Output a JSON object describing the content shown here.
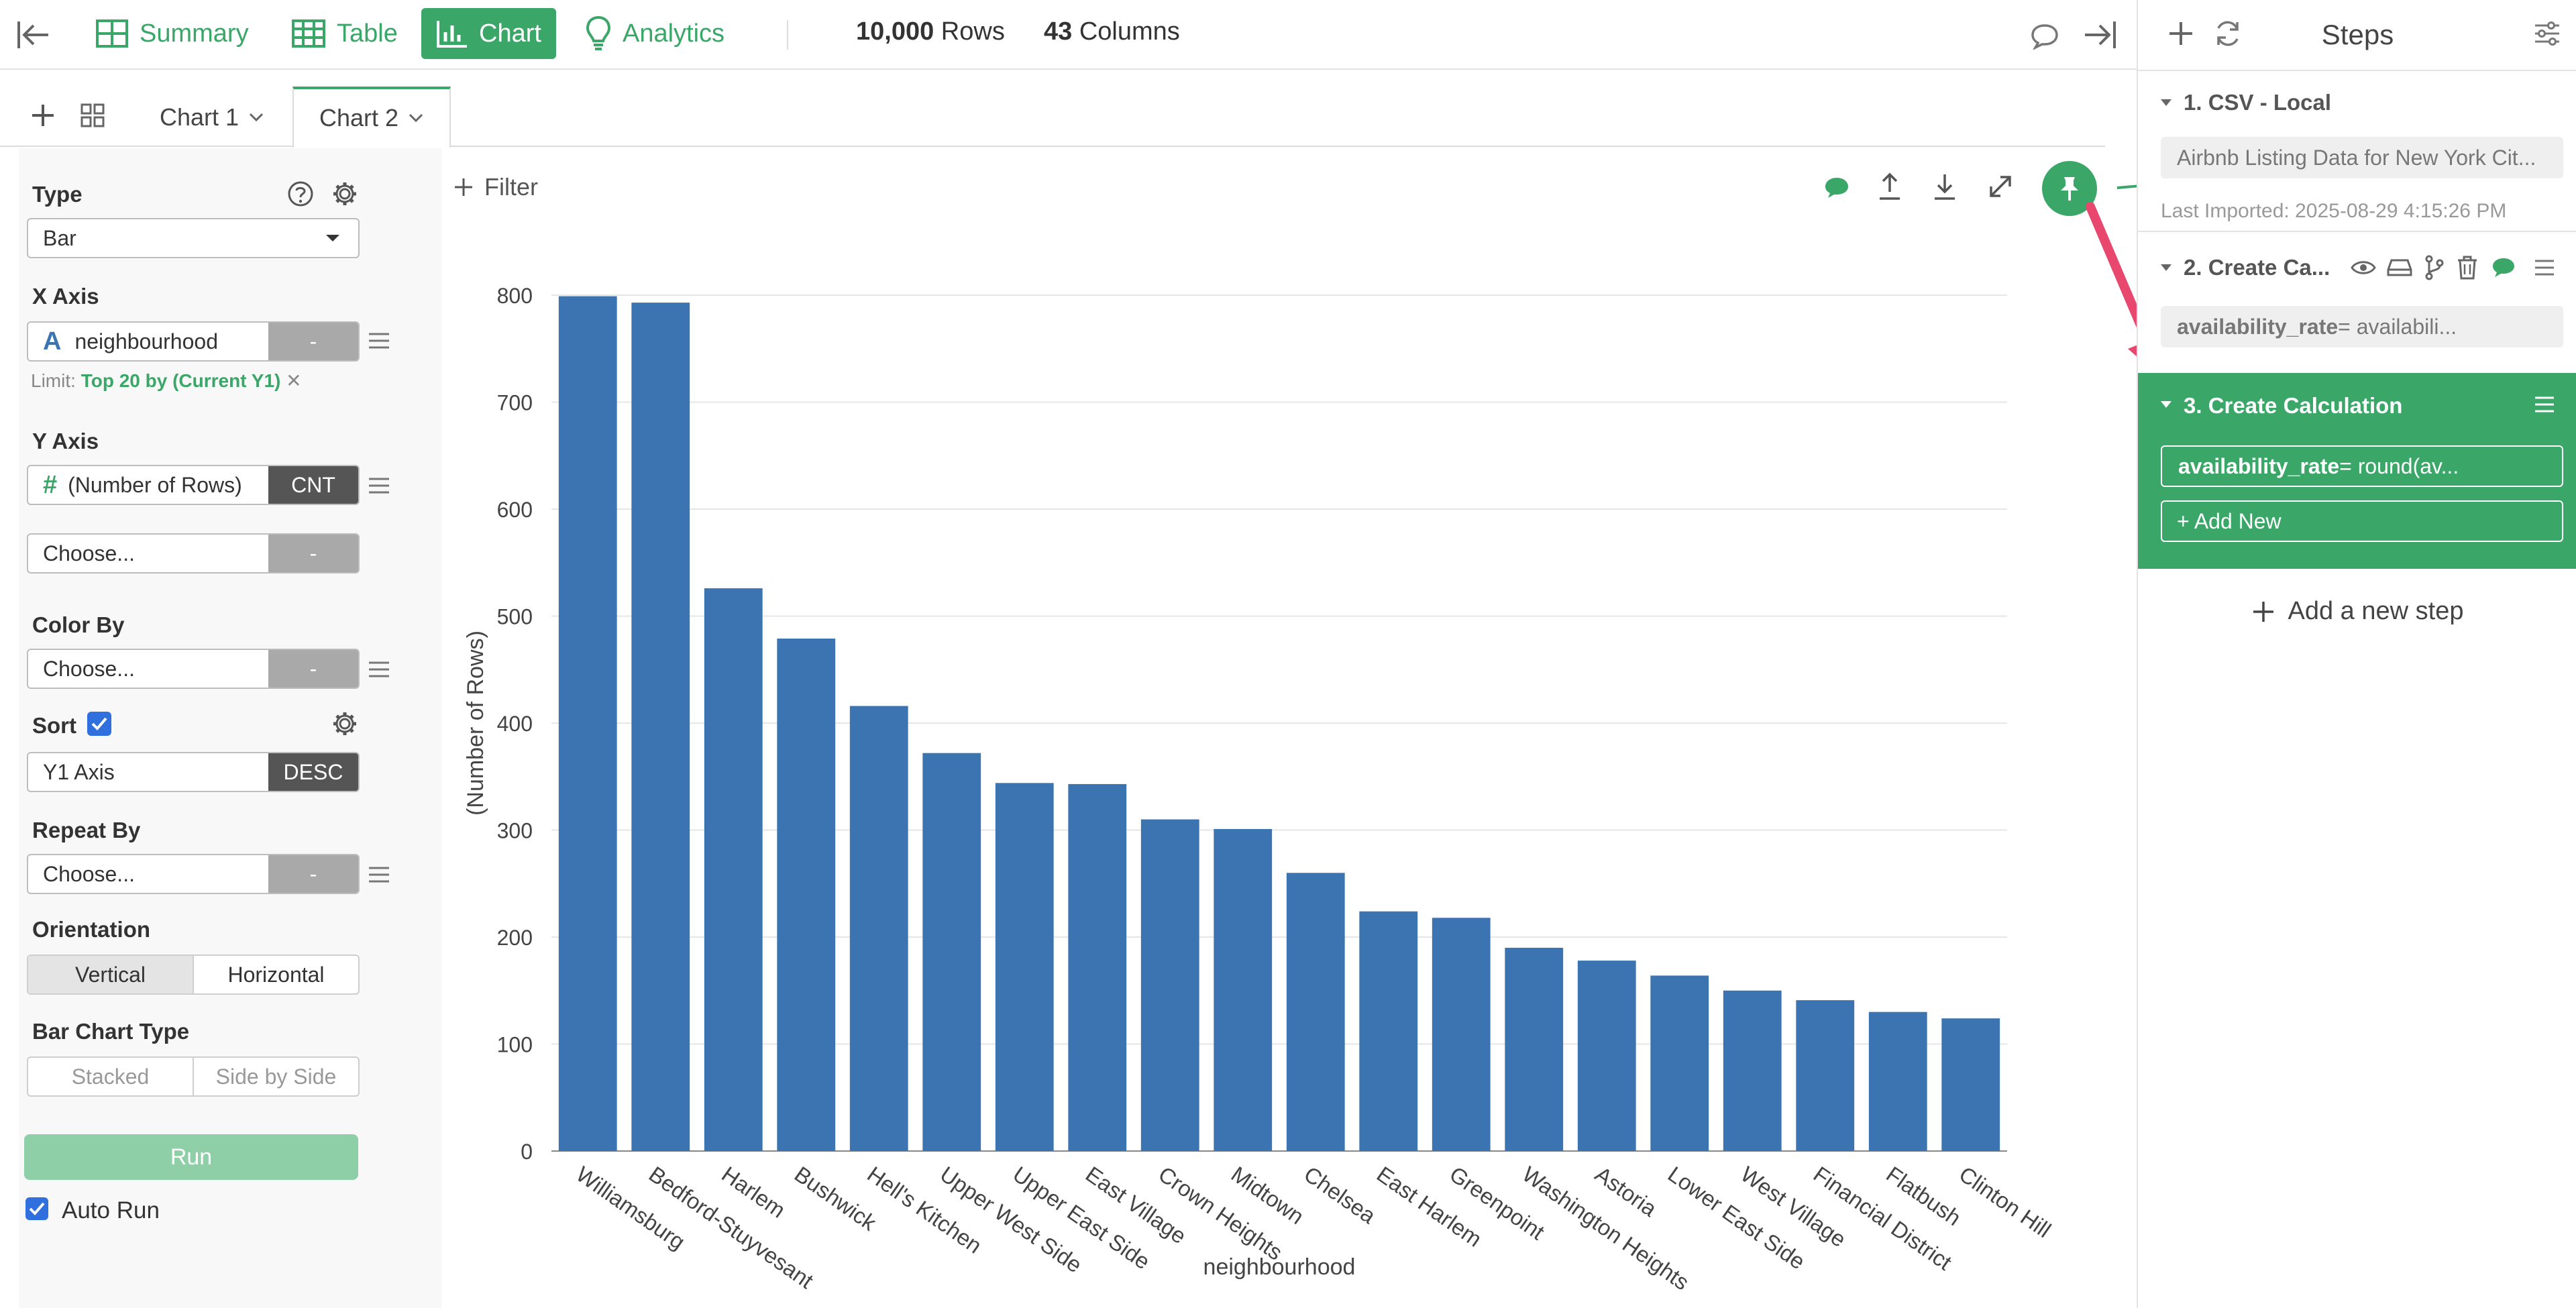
{
  "topbar": {
    "nav": [
      {
        "label": "Summary",
        "icon": "summary-grid-icon"
      },
      {
        "label": "Table",
        "icon": "table-icon"
      },
      {
        "label": "Chart",
        "icon": "bar-chart-icon"
      },
      {
        "label": "Analytics",
        "icon": "lightbulb-icon"
      }
    ],
    "rows_count": "10,000",
    "rows_label": "Rows",
    "cols_count": "43",
    "cols_label": "Columns"
  },
  "tabs": [
    {
      "label": "Chart 1"
    },
    {
      "label": "Chart 2"
    }
  ],
  "config": {
    "type_label": "Type",
    "type_value": "Bar",
    "xaxis_label": "X Axis",
    "xaxis_value": "neighbourhood",
    "xaxis_type_glyph": "A",
    "xaxis_agg": "-",
    "limit_prefix": "Limit:",
    "limit_value": "Top 20 by (Current Y1)",
    "yaxis_label": "Y Axis",
    "yaxis_value": "(Number of Rows)",
    "yaxis_type_glyph": "#",
    "yaxis_agg": "CNT",
    "yaxis2_value": "Choose...",
    "yaxis2_agg": "-",
    "colorby_label": "Color By",
    "colorby_value": "Choose...",
    "colorby_agg": "-",
    "sort_label": "Sort",
    "sort_value": "Y1 Axis",
    "sort_order": "DESC",
    "repeatby_label": "Repeat By",
    "repeatby_value": "Choose...",
    "repeatby_agg": "-",
    "orientation_label": "Orientation",
    "orientation_options": [
      "Vertical",
      "Horizontal"
    ],
    "barcharttype_label": "Bar Chart Type",
    "barcharttype_options": [
      "Stacked",
      "Side by Side"
    ],
    "run_label": "Run",
    "autorun_label": "Auto Run"
  },
  "chart_toolbar": {
    "filter_label": "Filter"
  },
  "chart_data": {
    "type": "bar",
    "xlabel": "neighbourhood",
    "ylabel": "(Number of Rows)",
    "ylim": [
      0,
      800
    ],
    "yticks": [
      0,
      100,
      200,
      300,
      400,
      500,
      600,
      700,
      800
    ],
    "grid": true,
    "bar_color": "#3b74b0",
    "categories": [
      "Williamsburg",
      "Bedford-Stuyvesant",
      "Harlem",
      "Bushwick",
      "Hell's Kitchen",
      "Upper West Side",
      "Upper East Side",
      "East Village",
      "Crown Heights",
      "Midtown",
      "Chelsea",
      "East Harlem",
      "Greenpoint",
      "Washington Heights",
      "Astoria",
      "Lower East Side",
      "West Village",
      "Financial District",
      "Flatbush",
      "Clinton Hill"
    ],
    "values": [
      799,
      793,
      526,
      479,
      416,
      372,
      344,
      343,
      310,
      301,
      260,
      224,
      218,
      190,
      178,
      164,
      150,
      141,
      130,
      124
    ]
  },
  "steps": {
    "header": "Steps",
    "items": [
      {
        "title": "1. CSV - Local",
        "box": "Airbnb Listing Data for New York Cit...",
        "note": "Last Imported: 2025-08-29 4:15:26 PM"
      },
      {
        "title": "2. Create Ca...",
        "box_bold": "availability_rate",
        "box_rest": " = availabili..."
      },
      {
        "title": "3. Create Calculation",
        "box_bold": "availability_rate",
        "box_rest": " = round(av...",
        "add_new": "+ Add New"
      }
    ],
    "add_step_label": "Add a new step"
  },
  "colors": {
    "accent": "#3aa768",
    "bar": "#3b74b0",
    "arrow": "#e8486e"
  }
}
